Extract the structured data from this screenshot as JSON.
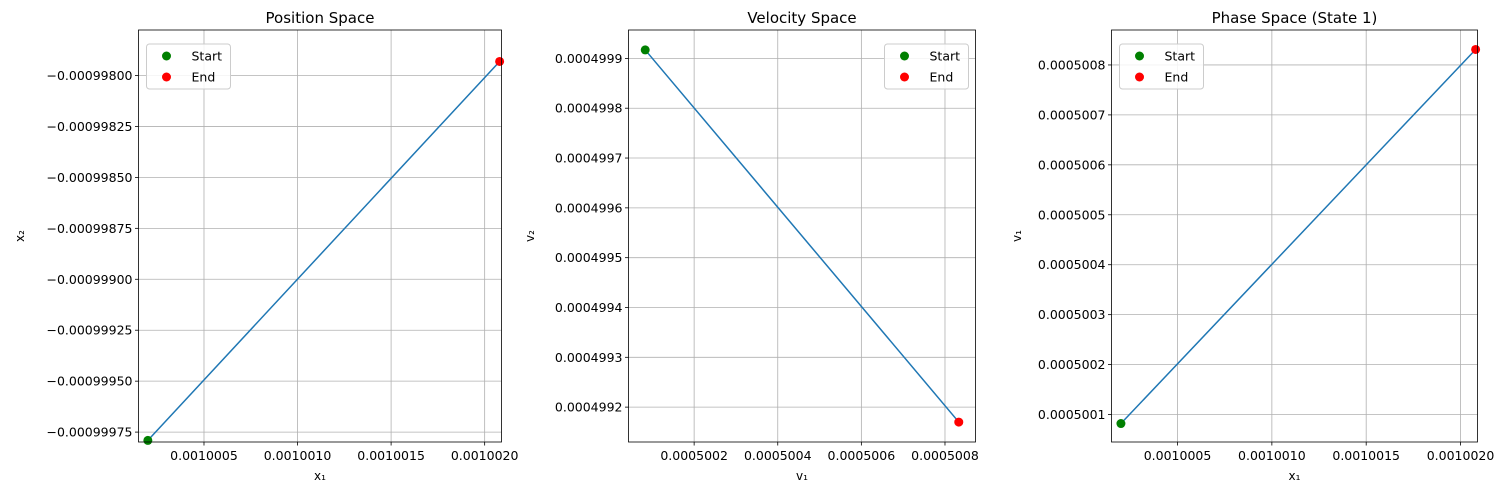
{
  "chart_data": [
    {
      "type": "line",
      "title": "Position Space",
      "xlabel": "x₁",
      "ylabel": "x₂",
      "xlim": [
        1.0000015,
        1.0000209
      ],
      "ylim": [
        -0.0009997986,
        -0.0009977766
      ],
      "xticks": [
        1.000005,
        1.00001,
        1.000015,
        1.00002
      ],
      "xticklabels": [
        "0.0010005",
        "0.0010010",
        "0.0010015",
        "0.0010020"
      ],
      "yticks": [
        -0.00099975,
        -0.0009995,
        -0.00099925,
        -0.000999,
        -0.00099875,
        -0.0009985,
        -0.00099825,
        -0.000998
      ],
      "yticklabels": [
        "−0.00099975",
        "−0.00099950",
        "−0.00099925",
        "−0.00099900",
        "−0.00099875",
        "−0.00099850",
        "−0.00099825",
        "−0.00099800"
      ],
      "series": [
        {
          "x": [
            1.000002,
            1.0000208
          ],
          "y": [
            -0.0009997908,
            -0.000997931
          ],
          "color": "#1f77b4"
        }
      ],
      "markers": [
        {
          "name": "Start",
          "x": 1.000002,
          "y": -0.0009997908,
          "color": "#008000"
        },
        {
          "name": "End",
          "x": 1.0000208,
          "y": -0.000997931,
          "color": "#ff0000"
        }
      ],
      "grid": true,
      "legend": "upper-left",
      "x_scale_multiplier": 0.001
    },
    {
      "type": "line",
      "title": "Velocity Space",
      "xlabel": "v₁",
      "ylabel": "v₂",
      "xlim": [
        0.000500043,
        0.000500873
      ],
      "ylim": [
        0.00049913,
        0.000499957
      ],
      "xticks": [
        0.0005002,
        0.0005004,
        0.0005006,
        0.0005008
      ],
      "xticklabels": [
        "0.0005002",
        "0.0005004",
        "0.0005006",
        "0.0005008"
      ],
      "yticks": [
        0.0004992,
        0.0004993,
        0.0004994,
        0.0004995,
        0.0004996,
        0.0004997,
        0.0004998,
        0.0004999
      ],
      "yticklabels": [
        "0.0004992",
        "0.0004993",
        "0.0004994",
        "0.0004995",
        "0.0004996",
        "0.0004997",
        "0.0004998",
        "0.0004999"
      ],
      "series": [
        {
          "x": [
            0.000500083,
            0.000500833
          ],
          "y": [
            0.000499917,
            0.00049917
          ],
          "color": "#1f77b4"
        }
      ],
      "markers": [
        {
          "name": "Start",
          "x": 0.000500083,
          "y": 0.000499917,
          "color": "#008000"
        },
        {
          "name": "End",
          "x": 0.000500833,
          "y": 0.00049917,
          "color": "#ff0000"
        }
      ],
      "grid": true,
      "legend": "upper-right"
    },
    {
      "type": "line",
      "title": "Phase Space (State 1)",
      "xlabel": "x₁",
      "ylabel": "v₁",
      "xlim": [
        1.0000015,
        1.0000209
      ],
      "ylim": [
        0.000500045,
        0.00050087
      ],
      "xticks": [
        1.000005,
        1.00001,
        1.000015,
        1.00002
      ],
      "xticklabels": [
        "0.0010005",
        "0.0010010",
        "0.0010015",
        "0.0010020"
      ],
      "yticks": [
        0.0005001,
        0.0005002,
        0.0005003,
        0.0005004,
        0.0005005,
        0.0005006,
        0.0005007,
        0.0005008
      ],
      "yticklabels": [
        "0.0005001",
        "0.0005002",
        "0.0005003",
        "0.0005004",
        "0.0005005",
        "0.0005006",
        "0.0005007",
        "0.0005008"
      ],
      "series": [
        {
          "x": [
            1.000002,
            1.0000208
          ],
          "y": [
            0.000500082,
            0.000500831
          ],
          "color": "#1f77b4"
        }
      ],
      "markers": [
        {
          "name": "Start",
          "x": 1.000002,
          "y": 0.000500082,
          "color": "#008000"
        },
        {
          "name": "End",
          "x": 1.0000208,
          "y": 0.000500831,
          "color": "#ff0000"
        }
      ],
      "grid": true,
      "legend": "upper-left",
      "x_scale_multiplier": 0.001
    }
  ]
}
